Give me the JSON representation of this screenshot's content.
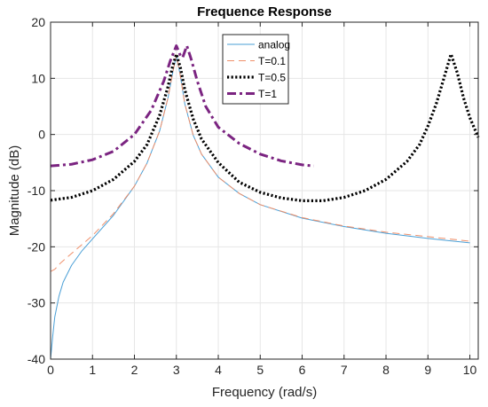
{
  "chart_data": {
    "type": "line",
    "title": "Frequence Response",
    "xlabel": "Frequency (rad/s)",
    "ylabel": "Magnitude (dB)",
    "xlim": [
      0,
      10.2
    ],
    "ylim": [
      -40,
      20
    ],
    "xticks": [
      0,
      1,
      2,
      3,
      4,
      5,
      6,
      7,
      8,
      9,
      10
    ],
    "yticks": [
      -40,
      -30,
      -20,
      -10,
      0,
      10,
      20
    ],
    "grid": true,
    "legend_position": "top-center",
    "series": [
      {
        "name": "analog",
        "color": "#4a9fd6",
        "style": "solid",
        "x": [
          0,
          0.05,
          0.1,
          0.2,
          0.3,
          0.5,
          0.75,
          1,
          1.5,
          2,
          2.3,
          2.6,
          2.8,
          2.9,
          3.0,
          3.1,
          3.2,
          3.4,
          3.6,
          4,
          4.5,
          5,
          6,
          7,
          8,
          9,
          10
        ],
        "y": [
          -40,
          -36,
          -32.5,
          -28.8,
          -26.3,
          -23.3,
          -20.7,
          -18.6,
          -14.4,
          -9.2,
          -5.1,
          0.6,
          6.5,
          10.5,
          14.2,
          10.2,
          5.5,
          -0.1,
          -3.5,
          -7.6,
          -10.5,
          -12.5,
          -14.9,
          -16.4,
          -17.6,
          -18.5,
          -19.3
        ]
      },
      {
        "name": "T=0.1",
        "color": "#ef8f6a",
        "style": "dashed",
        "x": [
          0,
          0.1,
          0.25,
          0.5,
          0.75,
          1,
          1.5,
          2,
          2.3,
          2.6,
          2.8,
          2.9,
          3.0,
          3.1,
          3.2,
          3.4,
          3.6,
          4,
          4.5,
          5,
          6,
          7,
          8,
          9,
          10
        ],
        "y": [
          -24.4,
          -24,
          -22.8,
          -21.2,
          -19.6,
          -18,
          -14.1,
          -9.2,
          -5.1,
          0.6,
          6.5,
          10.5,
          14.2,
          10.2,
          5.5,
          -0.1,
          -3.5,
          -7.6,
          -10.5,
          -12.5,
          -14.8,
          -16.3,
          -17.4,
          -18.2,
          -19
        ]
      },
      {
        "name": "T=0.5",
        "color": "#000000",
        "style": "dotted",
        "x": [
          0,
          0.5,
          1,
          1.5,
          2,
          2.3,
          2.6,
          2.8,
          2.9,
          3.0,
          3.1,
          3.2,
          3.4,
          3.6,
          4,
          4.5,
          5,
          5.5,
          6,
          6.5,
          7,
          7.5,
          8,
          8.5,
          8.8,
          9.0,
          9.2,
          9.4,
          9.55,
          9.7,
          9.85,
          10,
          10.2
        ],
        "y": [
          -11.7,
          -11.2,
          -10,
          -8,
          -4.8,
          -1.8,
          3.4,
          8.5,
          11.8,
          14.3,
          11.8,
          8,
          2.8,
          -0.8,
          -5,
          -8.5,
          -10.3,
          -11.3,
          -11.8,
          -11.8,
          -11.2,
          -10,
          -8,
          -4.8,
          -1.8,
          1.5,
          5.5,
          10.5,
          14.3,
          11,
          6.5,
          3,
          -0.5
        ]
      },
      {
        "name": "T=1",
        "color": "#7b2481",
        "style": "dashdot",
        "x": [
          0,
          0.5,
          1,
          1.5,
          2,
          2.4,
          2.7,
          2.85,
          3.0,
          3.1,
          3.15,
          3.25,
          3.35,
          3.5,
          3.7,
          4,
          4.5,
          5,
          5.5,
          6,
          6.28
        ],
        "y": [
          -5.6,
          -5.3,
          -4.5,
          -3,
          0,
          4.3,
          9.5,
          13,
          15.8,
          14,
          13.7,
          15.8,
          13.5,
          9.5,
          5,
          1.3,
          -1.6,
          -3.5,
          -4.7,
          -5.4,
          -5.6
        ]
      }
    ]
  }
}
